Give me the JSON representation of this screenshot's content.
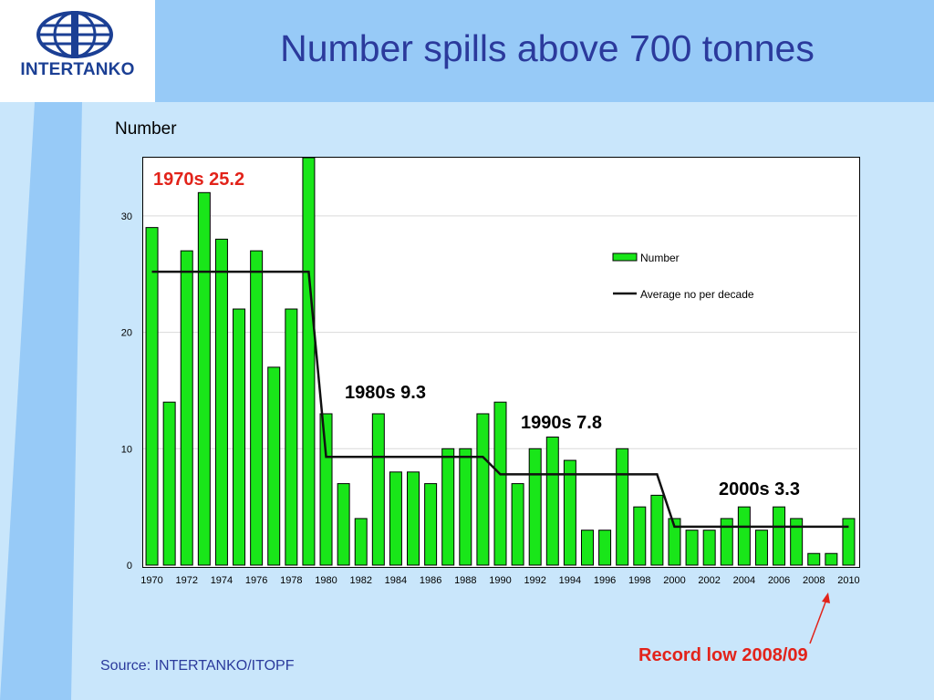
{
  "slide": {
    "title": "Number spills above 700 tonnes",
    "source": "Source: INTERTANKO/ITOPF",
    "record_low_note": "Record low 2008/09",
    "logo_text": "INTERTANKO"
  },
  "colors": {
    "bar_fill": "#19e619",
    "average_line": "#111111",
    "title_text": "#2b3a9c",
    "highlight_red": "#e2231a",
    "background": "#c9e6fb",
    "header_band": "#97caf7"
  },
  "chart_data": {
    "type": "bar",
    "ylabel": "Number",
    "ylim": [
      0,
      35
    ],
    "yticks": [
      0,
      10,
      20,
      30
    ],
    "x_tick_labels": [
      "1970",
      "1972",
      "1974",
      "1976",
      "1978",
      "1980",
      "1982",
      "1984",
      "1986",
      "1988",
      "1990",
      "1992",
      "1994",
      "1996",
      "1998",
      "2000",
      "2002",
      "2004",
      "2006",
      "2008",
      "2010"
    ],
    "grid": true,
    "legend_position": "top-right",
    "categories": [
      "1970",
      "1971",
      "1972",
      "1973",
      "1974",
      "1975",
      "1976",
      "1977",
      "1978",
      "1979",
      "1980",
      "1981",
      "1982",
      "1983",
      "1984",
      "1985",
      "1986",
      "1987",
      "1988",
      "1989",
      "1990",
      "1991",
      "1992",
      "1993",
      "1994",
      "1995",
      "1996",
      "1997",
      "1998",
      "1999",
      "2000",
      "2001",
      "2002",
      "2003",
      "2004",
      "2005",
      "2006",
      "2007",
      "2008",
      "2009",
      "2010"
    ],
    "series": [
      {
        "name": "Number",
        "type": "bar",
        "values": [
          29,
          14,
          27,
          32,
          28,
          22,
          27,
          17,
          22,
          35,
          13,
          7,
          4,
          13,
          8,
          8,
          7,
          10,
          10,
          13,
          14,
          7,
          10,
          11,
          9,
          3,
          3,
          10,
          5,
          6,
          4,
          3,
          3,
          4,
          5,
          3,
          5,
          4,
          1,
          1,
          4
        ]
      },
      {
        "name": "Average no per decade",
        "type": "line",
        "segments": [
          {
            "from": "1970",
            "to": "1979",
            "value": 25.2
          },
          {
            "from": "1980",
            "to": "1989",
            "value": 9.3
          },
          {
            "from": "1990",
            "to": "1999",
            "value": 7.8
          },
          {
            "from": "2000",
            "to": "2010",
            "value": 3.3
          }
        ]
      }
    ],
    "annotations": [
      {
        "text": "1970s  25.2",
        "color": "#e2231a"
      },
      {
        "text": "1980s  9.3",
        "color": "#000000"
      },
      {
        "text": "1990s  7.8",
        "color": "#000000"
      },
      {
        "text": "2000s  3.3",
        "color": "#000000"
      }
    ]
  }
}
